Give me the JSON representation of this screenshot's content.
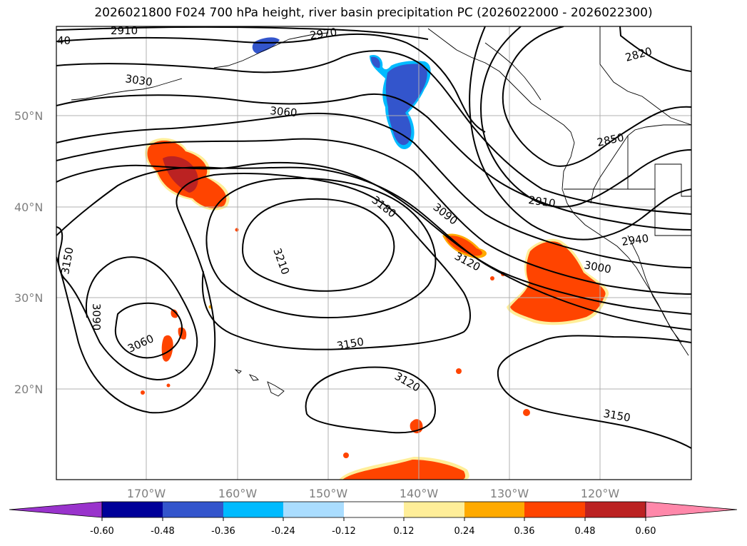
{
  "title": "2026021800 F024 700 hPa height, river basin precipitation PC (2026022000 - 2026022300)",
  "map": {
    "lon_labels": [
      "170°W",
      "160°W",
      "150°W",
      "140°W",
      "130°W",
      "120°W"
    ],
    "lat_labels": [
      "50°N",
      "40°N",
      "30°N",
      "20°N"
    ],
    "contour_labels": [
      "40",
      "2910",
      "2970",
      "3030",
      "3060",
      "2820",
      "2850",
      "2910",
      "3180",
      "3090",
      "2940",
      "3150",
      "3210",
      "3120",
      "3000",
      "3090",
      "3060",
      "3150",
      "3120",
      "3150"
    ]
  },
  "colorbar": {
    "tick_labels": [
      "-0.60",
      "-0.48",
      "-0.36",
      "-0.24",
      "-0.12",
      "0.12",
      "0.24",
      "0.36",
      "0.48",
      "0.60"
    ],
    "colors": [
      "#9933cc",
      "#000099",
      "#3355cc",
      "#00bbff",
      "#aaddff",
      "#ffffff",
      "#ffee99",
      "#ffaa00",
      "#ff4400",
      "#bb2222",
      "#ff88aa"
    ]
  }
}
